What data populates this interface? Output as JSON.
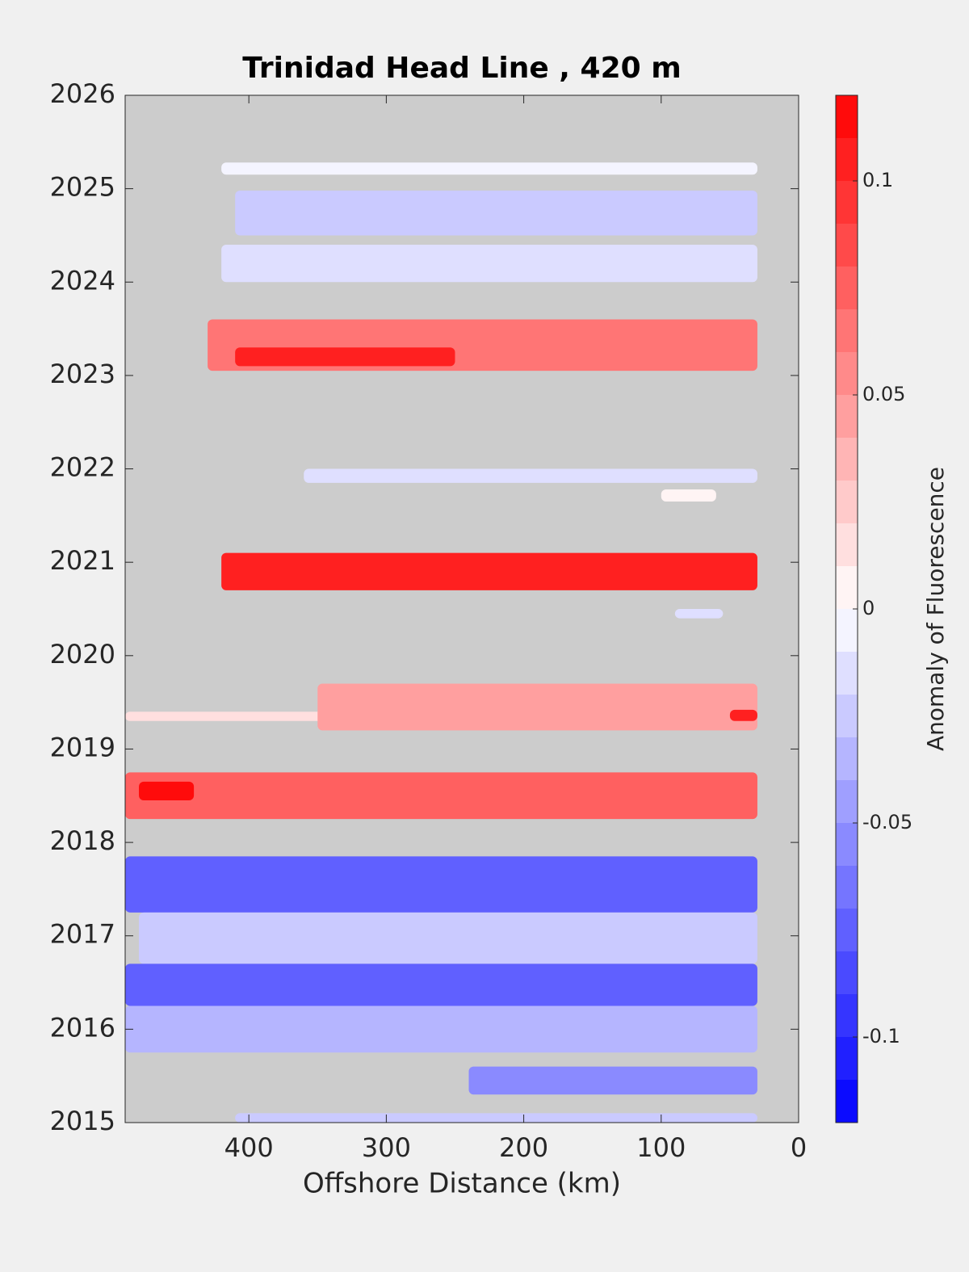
{
  "chart_data": {
    "type": "contour",
    "title": "Trinidad Head Line , 420 m",
    "xlabel": "Offshore Distance (km)",
    "xlim": [
      490,
      0
    ],
    "xticks": [
      400,
      300,
      200,
      100,
      0
    ],
    "ylim": [
      2015,
      2026
    ],
    "yticks": [
      2015,
      2016,
      2017,
      2018,
      2019,
      2020,
      2021,
      2022,
      2023,
      2024,
      2025,
      2026
    ],
    "missing_color": "#cccccc",
    "colorbar": {
      "label": "Anomaly of Fluorescence",
      "clim": [
        -0.12,
        0.12
      ],
      "levels": 24,
      "colors": [
        "#0000ff",
        "#ffffff",
        "#ff0000"
      ],
      "ticks": [
        -0.1,
        -0.05,
        0,
        0.05,
        0.1
      ]
    },
    "patches": [
      {
        "x": [
          420,
          30
        ],
        "y": [
          2025.15,
          2025.28
        ],
        "z": -0.01
      },
      {
        "x": [
          410,
          30
        ],
        "y": [
          2024.5,
          2024.98
        ],
        "z": -0.03
      },
      {
        "x": [
          420,
          30
        ],
        "y": [
          2024.0,
          2024.4
        ],
        "z": -0.02
      },
      {
        "x": [
          430,
          30
        ],
        "y": [
          2023.05,
          2023.6
        ],
        "z": 0.06
      },
      {
        "x": [
          410,
          250
        ],
        "y": [
          2023.1,
          2023.3
        ],
        "z": 0.1
      },
      {
        "x": [
          360,
          30
        ],
        "y": [
          2021.85,
          2022.0
        ],
        "z": -0.02
      },
      {
        "x": [
          100,
          60
        ],
        "y": [
          2021.65,
          2021.78
        ],
        "z": 0.005
      },
      {
        "x": [
          420,
          30
        ],
        "y": [
          2020.7,
          2021.1
        ],
        "z": 0.1
      },
      {
        "x": [
          90,
          55
        ],
        "y": [
          2020.4,
          2020.5
        ],
        "z": -0.02
      },
      {
        "x": [
          490,
          30
        ],
        "y": [
          2019.3,
          2019.4
        ],
        "z": 0.01
      },
      {
        "x": [
          350,
          30
        ],
        "y": [
          2019.2,
          2019.7
        ],
        "z": 0.04
      },
      {
        "x": [
          50,
          30
        ],
        "y": [
          2019.3,
          2019.42
        ],
        "z": 0.1
      },
      {
        "x": [
          490,
          30
        ],
        "y": [
          2018.25,
          2018.75
        ],
        "z": 0.07
      },
      {
        "x": [
          480,
          440
        ],
        "y": [
          2018.45,
          2018.65
        ],
        "z": 0.11
      },
      {
        "x": [
          490,
          30
        ],
        "y": [
          2017.25,
          2017.85
        ],
        "z": -0.07
      },
      {
        "x": [
          480,
          30
        ],
        "y": [
          2016.7,
          2017.25
        ],
        "z": -0.03
      },
      {
        "x": [
          490,
          30
        ],
        "y": [
          2016.25,
          2016.7
        ],
        "z": -0.08
      },
      {
        "x": [
          490,
          30
        ],
        "y": [
          2015.75,
          2016.25
        ],
        "z": -0.04
      },
      {
        "x": [
          240,
          30
        ],
        "y": [
          2015.3,
          2015.6
        ],
        "z": -0.06
      },
      {
        "x": [
          410,
          30
        ],
        "y": [
          2015.0,
          2015.1
        ],
        "z": -0.03
      }
    ]
  }
}
